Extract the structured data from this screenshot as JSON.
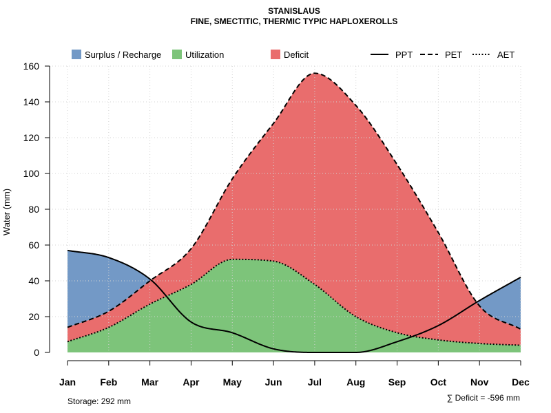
{
  "chart_data": {
    "type": "area",
    "title": "STANISLAUS",
    "subtitle": "FINE, SMECTITIC, THERMIC TYPIC HAPLOXEROLLS",
    "ylabel": "Water (mm)",
    "xlabel": "",
    "ylim": [
      0,
      160
    ],
    "yticks": [
      0,
      20,
      40,
      60,
      80,
      100,
      120,
      140,
      160
    ],
    "categories": [
      "Jan",
      "Feb",
      "Mar",
      "Apr",
      "May",
      "Jun",
      "Jul",
      "Aug",
      "Sep",
      "Oct",
      "Nov",
      "Dec"
    ],
    "series": [
      {
        "name": "PPT",
        "style": "solid",
        "values": [
          57,
          53,
          41,
          17,
          11,
          2,
          0,
          0,
          6,
          15,
          29,
          42
        ]
      },
      {
        "name": "PET",
        "style": "dashed",
        "values": [
          14,
          23,
          40,
          58,
          97,
          128,
          156,
          138,
          105,
          67,
          26,
          13
        ]
      },
      {
        "name": "AET",
        "style": "dotted",
        "values": [
          6,
          14,
          27,
          38,
          52,
          51,
          38,
          20,
          11,
          7,
          5,
          4
        ]
      }
    ],
    "legend": [
      {
        "label": "Surplus / Recharge",
        "kind": "fill",
        "color": "#7399C6"
      },
      {
        "label": "Utilization",
        "kind": "fill",
        "color": "#7DC47A"
      },
      {
        "label": "Deficit",
        "kind": "fill",
        "color": "#E96D6D"
      },
      {
        "label": "PPT",
        "kind": "line",
        "dash": "solid"
      },
      {
        "label": "PET",
        "kind": "line",
        "dash": "dashed"
      },
      {
        "label": "AET",
        "kind": "line",
        "dash": "dotted"
      }
    ],
    "legend_position": "top",
    "grid": true,
    "colors": {
      "surplus": "#7399C6",
      "utilization": "#7DC47A",
      "deficit": "#E96D6D",
      "grid": "#d3d3d3"
    },
    "storage_text": "Storage: 292 mm",
    "deficit_text": "∑ Deficit = -596 mm"
  }
}
